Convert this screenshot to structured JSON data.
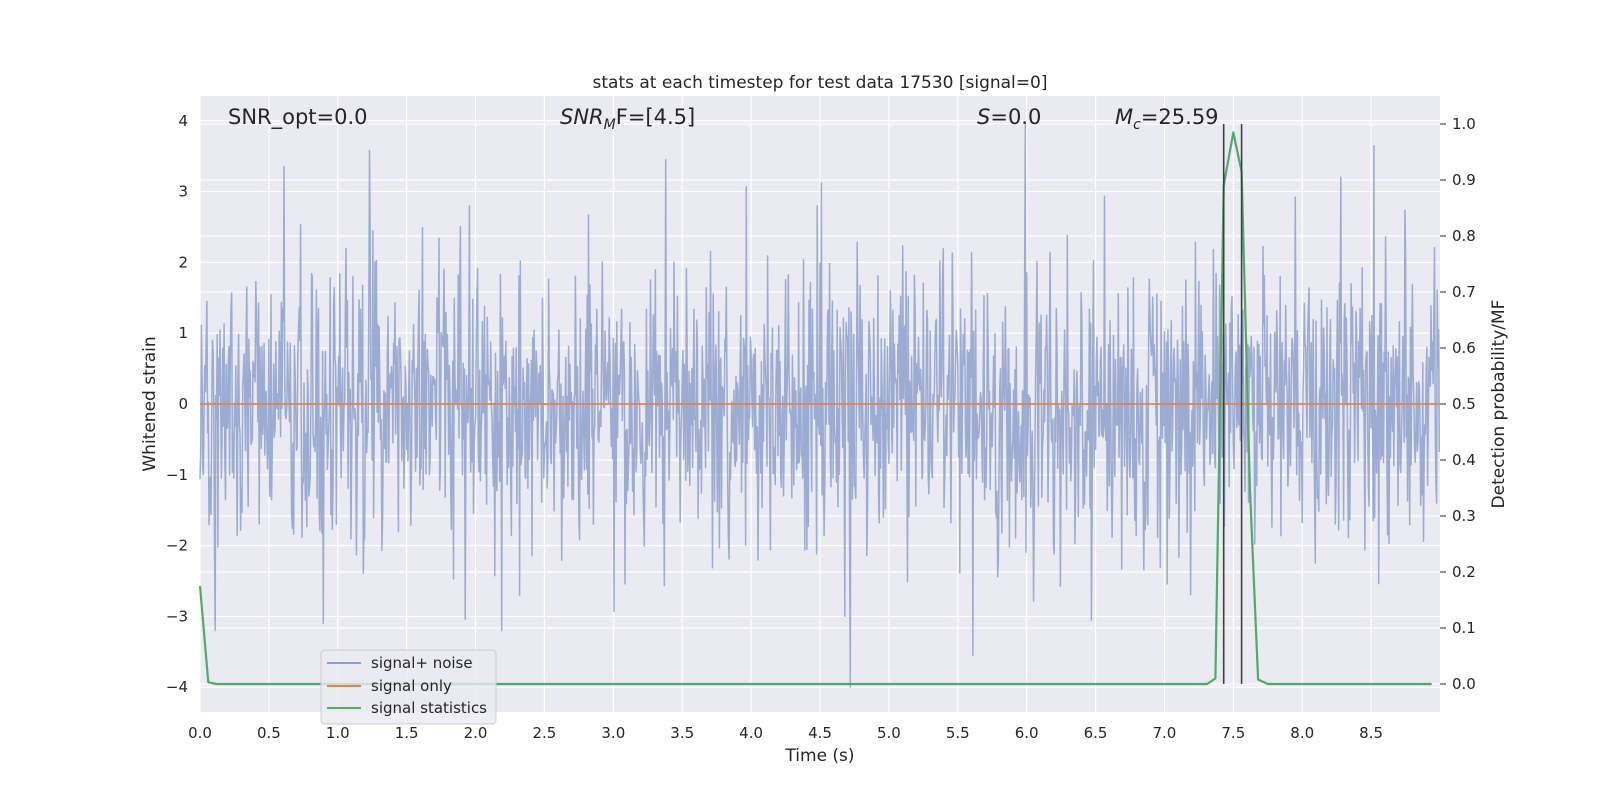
{
  "chart_data": {
    "type": "line",
    "title": "stats at each timestep for test data 17530 [signal=0]",
    "xlabel": "Time (s)",
    "ylabel": "Whitened strain",
    "ylabel_right": "Detection probability/MF",
    "xlim": [
      0.0,
      9.0
    ],
    "ylim": [
      -4.35,
      4.35
    ],
    "ylim_right": [
      -0.05,
      1.05
    ],
    "grid": true,
    "x_ticks": [
      "0.0",
      "0.5",
      "1.0",
      "1.5",
      "2.0",
      "2.5",
      "3.0",
      "3.5",
      "4.0",
      "4.5",
      "5.0",
      "5.5",
      "6.0",
      "6.5",
      "7.0",
      "7.5",
      "8.0",
      "8.5"
    ],
    "y_ticks": [
      "−4",
      "−3",
      "−2",
      "−1",
      "0",
      "1",
      "2",
      "3",
      "4"
    ],
    "y_ticks_right": [
      "0.0",
      "0.1",
      "0.2",
      "0.3",
      "0.4",
      "0.5",
      "0.6",
      "0.7",
      "0.8",
      "0.9",
      "1.0"
    ],
    "annotations": {
      "snr_opt": "SNR_opt=0.0",
      "snr_mf_main": "SNR",
      "snr_mf_sub": "M",
      "snr_mf_rest": "F=[4.5]",
      "s_var": "S",
      "s_rest": "=0.0",
      "mc_var": "M",
      "mc_sub": "c",
      "mc_rest": "=25.59"
    },
    "legend": {
      "position": "lower-left",
      "entries": [
        "signal+ noise",
        "signal only",
        "signal statistics"
      ]
    },
    "colors": {
      "noise": "#8da0cb",
      "signal_only": "#dd8452",
      "statistics": "#55a868",
      "vlines": "#404040",
      "background": "#eaeaf2",
      "grid": "#ffffff"
    },
    "series": [
      {
        "name": "signal+ noise",
        "axis": "left",
        "description": "whitened noise samples, approx. Gaussian with unit variance",
        "sample_rate": 200,
        "duration": 8.998,
        "notable_peaks": [
          {
            "x": 0.61,
            "y": 3.35
          },
          {
            "x": 1.23,
            "y": 3.58
          },
          {
            "x": 3.38,
            "y": 3.45
          },
          {
            "x": 5.99,
            "y": 3.95
          },
          {
            "x": 8.52,
            "y": 3.65
          },
          {
            "x": 4.51,
            "y": 3.12
          },
          {
            "x": 8.28,
            "y": 3.2
          },
          {
            "x": 4.72,
            "y": -4.0
          },
          {
            "x": 5.61,
            "y": -3.55
          },
          {
            "x": 0.11,
            "y": -3.2
          },
          {
            "x": 2.19,
            "y": -3.2
          },
          {
            "x": 4.68,
            "y": -3.0
          },
          {
            "x": 6.47,
            "y": -3.05
          }
        ]
      },
      {
        "name": "signal only",
        "axis": "left",
        "x": [
          0.0,
          9.0
        ],
        "y": [
          0.0,
          0.0
        ]
      },
      {
        "name": "signal statistics",
        "axis": "right",
        "x": [
          0.0,
          0.06,
          0.12,
          7.31,
          7.37,
          7.43,
          7.5,
          7.56,
          7.62,
          7.68,
          7.75,
          8.94
        ],
        "y": [
          0.175,
          0.003,
          0.0,
          0.0,
          0.01,
          0.89,
          0.985,
          0.915,
          0.35,
          0.008,
          0.0,
          0.0
        ]
      }
    ],
    "vlines": [
      7.43,
      7.56
    ]
  }
}
